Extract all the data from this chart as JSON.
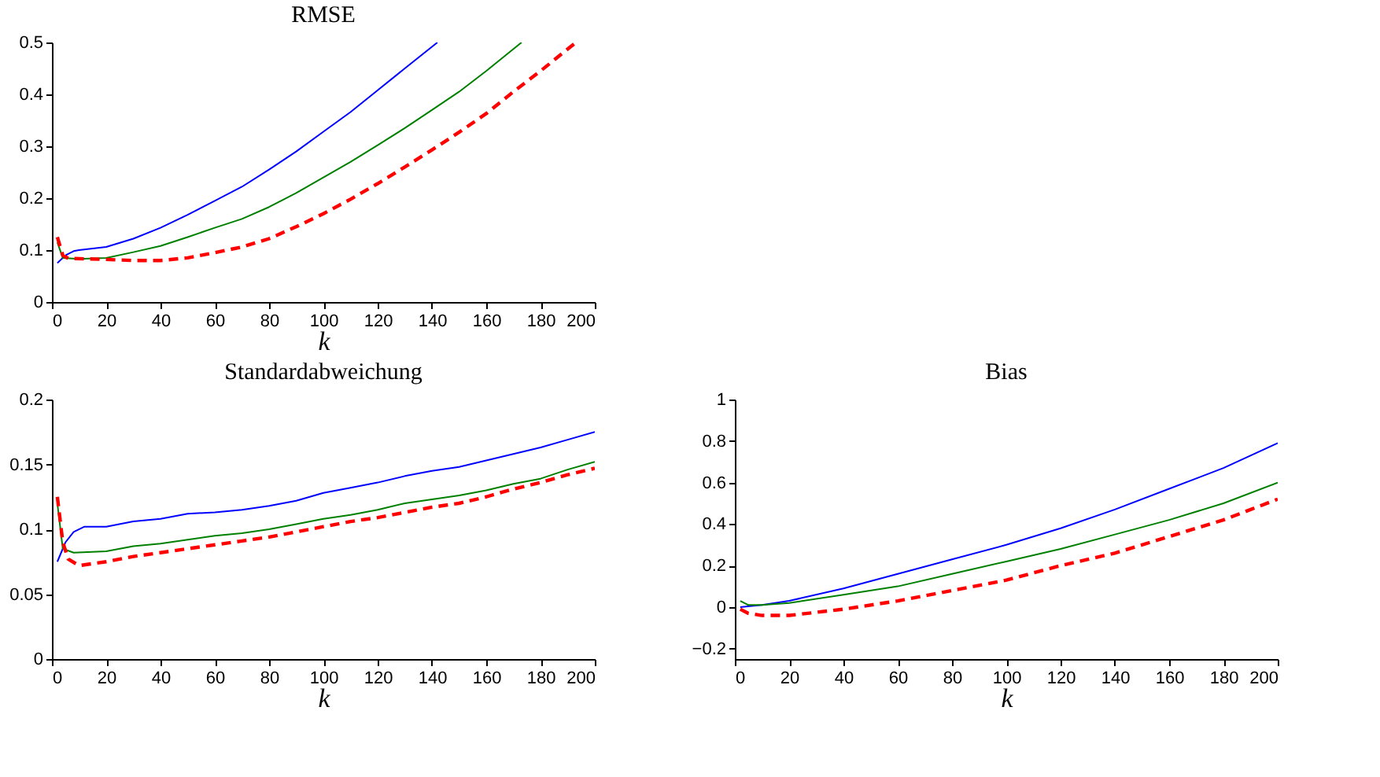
{
  "chart_data": [
    {
      "type": "line",
      "title": "RMSE",
      "xlabel": "k",
      "xlim": [
        0,
        200
      ],
      "xticks": [
        0,
        20,
        40,
        60,
        80,
        100,
        120,
        140,
        160,
        180,
        200
      ],
      "ylim": [
        0,
        0.5
      ],
      "yticks": [
        0,
        0.1,
        0.2,
        0.3,
        0.4,
        0.5
      ],
      "grid": false,
      "series": [
        {
          "color": "#0000ff",
          "line_style": "solid",
          "x": [
            2,
            5,
            8,
            10,
            20,
            30,
            40,
            50,
            60,
            70,
            80,
            90,
            100,
            110,
            120,
            130,
            142
          ],
          "values": [
            0.075,
            0.09,
            0.098,
            0.1,
            0.106,
            0.122,
            0.143,
            0.168,
            0.195,
            0.222,
            0.255,
            0.29,
            0.328,
            0.366,
            0.408,
            0.45,
            0.5
          ]
        },
        {
          "color": "#008000",
          "line_style": "solid",
          "x": [
            2,
            4,
            10,
            20,
            30,
            40,
            50,
            60,
            70,
            80,
            90,
            100,
            110,
            120,
            130,
            140,
            150,
            160,
            173
          ],
          "values": [
            0.115,
            0.085,
            0.083,
            0.085,
            0.096,
            0.108,
            0.125,
            0.143,
            0.16,
            0.183,
            0.21,
            0.24,
            0.27,
            0.302,
            0.335,
            0.37,
            0.405,
            0.445,
            0.5
          ]
        },
        {
          "color": "#ff0000",
          "line_style": "dashed",
          "x": [
            2,
            4,
            6,
            20,
            30,
            40,
            50,
            60,
            70,
            80,
            90,
            100,
            110,
            120,
            130,
            140,
            150,
            160,
            170,
            180,
            193
          ],
          "values": [
            0.125,
            0.09,
            0.084,
            0.082,
            0.08,
            0.08,
            0.085,
            0.095,
            0.106,
            0.122,
            0.145,
            0.17,
            0.198,
            0.228,
            0.26,
            0.293,
            0.327,
            0.363,
            0.405,
            0.445,
            0.5
          ]
        }
      ]
    },
    {
      "type": "line",
      "title": "Standardabweichung",
      "xlabel": "k",
      "xlim": [
        0,
        200
      ],
      "xticks": [
        0,
        20,
        40,
        60,
        80,
        100,
        120,
        140,
        160,
        180,
        200
      ],
      "ylim": [
        0,
        0.2
      ],
      "yticks": [
        0,
        0.05,
        0.1,
        0.15,
        0.2
      ],
      "grid": false,
      "series": [
        {
          "color": "#0000ff",
          "line_style": "solid",
          "x": [
            2,
            5,
            8,
            12,
            20,
            30,
            40,
            50,
            60,
            70,
            80,
            90,
            100,
            110,
            120,
            130,
            140,
            150,
            160,
            170,
            180,
            190,
            200
          ],
          "values": [
            0.075,
            0.09,
            0.098,
            0.102,
            0.102,
            0.106,
            0.108,
            0.112,
            0.113,
            0.115,
            0.118,
            0.122,
            0.128,
            0.132,
            0.136,
            0.141,
            0.145,
            0.148,
            0.153,
            0.158,
            0.163,
            0.169,
            0.175
          ]
        },
        {
          "color": "#008000",
          "line_style": "solid",
          "x": [
            2,
            4,
            8,
            20,
            30,
            40,
            50,
            60,
            70,
            80,
            90,
            100,
            110,
            120,
            130,
            140,
            150,
            160,
            170,
            180,
            190,
            200
          ],
          "values": [
            0.12,
            0.085,
            0.082,
            0.083,
            0.087,
            0.089,
            0.092,
            0.095,
            0.097,
            0.1,
            0.104,
            0.108,
            0.111,
            0.115,
            0.12,
            0.123,
            0.126,
            0.13,
            0.135,
            0.139,
            0.146,
            0.152
          ]
        },
        {
          "color": "#ff0000",
          "line_style": "dashed",
          "x": [
            2,
            4,
            6,
            10,
            20,
            30,
            40,
            50,
            60,
            70,
            80,
            90,
            100,
            110,
            120,
            130,
            140,
            150,
            160,
            170,
            180,
            190,
            200
          ],
          "values": [
            0.125,
            0.09,
            0.077,
            0.072,
            0.075,
            0.079,
            0.082,
            0.085,
            0.088,
            0.091,
            0.094,
            0.098,
            0.102,
            0.106,
            0.109,
            0.113,
            0.117,
            0.12,
            0.125,
            0.131,
            0.136,
            0.142,
            0.147
          ]
        }
      ]
    },
    {
      "type": "line",
      "title": "Bias",
      "xlabel": "k",
      "xlim": [
        0,
        200
      ],
      "xticks": [
        0,
        20,
        40,
        60,
        80,
        100,
        120,
        140,
        160,
        180,
        200
      ],
      "ylim": [
        -0.25,
        1
      ],
      "yticks": [
        {
          "value": -0.2,
          "label": "−0.2"
        },
        0,
        0.2,
        0.4,
        0.6,
        0.8,
        1
      ],
      "grid": false,
      "series": [
        {
          "color": "#0000ff",
          "line_style": "solid",
          "x": [
            2,
            10,
            20,
            40,
            60,
            80,
            100,
            120,
            140,
            160,
            180,
            200
          ],
          "values": [
            0.0,
            0.01,
            0.03,
            0.09,
            0.16,
            0.23,
            0.3,
            0.38,
            0.47,
            0.57,
            0.67,
            0.79
          ]
        },
        {
          "color": "#008000",
          "line_style": "solid",
          "x": [
            2,
            5,
            10,
            20,
            40,
            60,
            80,
            100,
            120,
            140,
            160,
            180,
            200
          ],
          "values": [
            0.03,
            0.01,
            0.01,
            0.02,
            0.06,
            0.1,
            0.16,
            0.22,
            0.28,
            0.35,
            0.42,
            0.5,
            0.6
          ]
        },
        {
          "color": "#ff0000",
          "line_style": "dashed",
          "x": [
            2,
            5,
            10,
            20,
            40,
            60,
            80,
            100,
            120,
            140,
            160,
            180,
            200
          ],
          "values": [
            -0.01,
            -0.03,
            -0.04,
            -0.04,
            -0.01,
            0.03,
            0.08,
            0.13,
            0.2,
            0.26,
            0.34,
            0.42,
            0.52
          ]
        }
      ]
    }
  ]
}
